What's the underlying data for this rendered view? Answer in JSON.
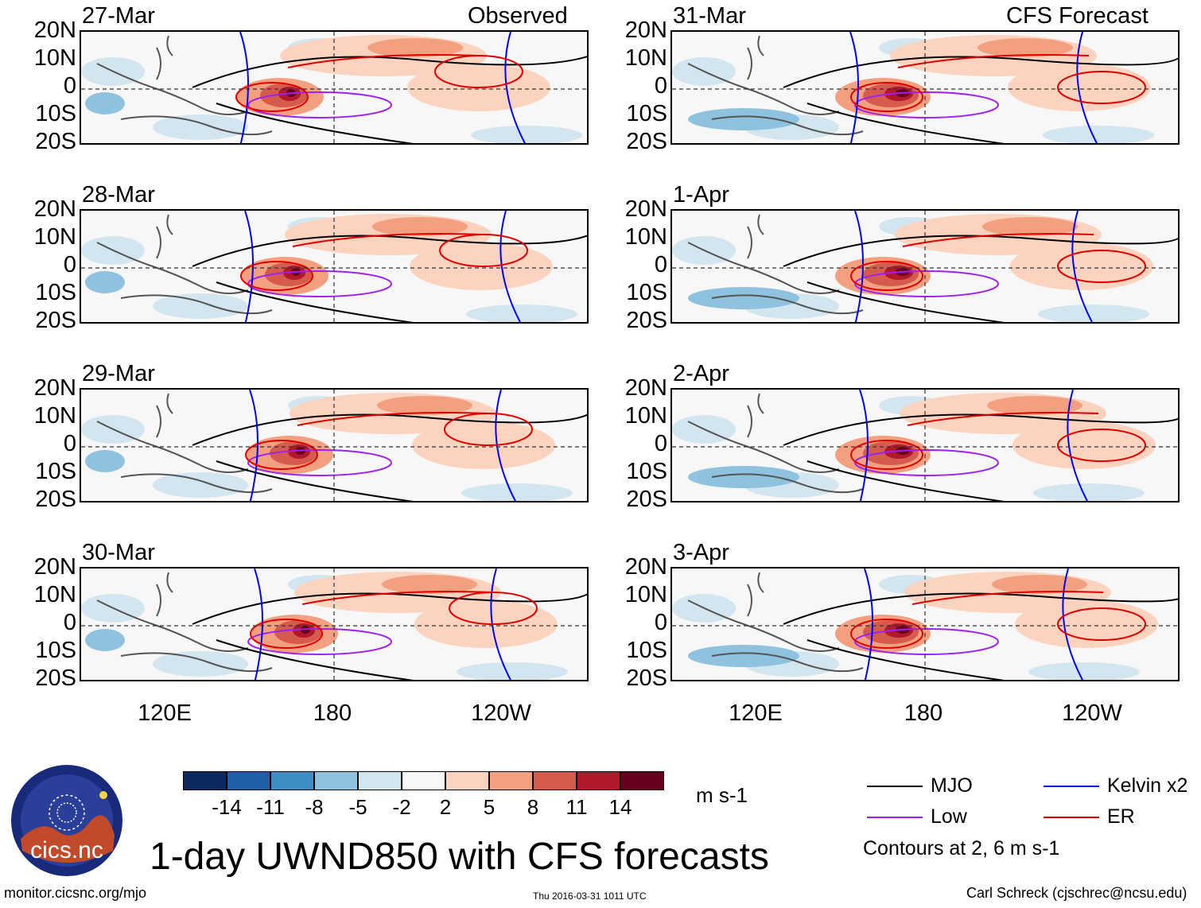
{
  "left_column": {
    "header": "Observed"
  },
  "right_column": {
    "header": "CFS Forecast"
  },
  "panels_left": [
    {
      "date": "27-Mar"
    },
    {
      "date": "28-Mar"
    },
    {
      "date": "29-Mar"
    },
    {
      "date": "30-Mar"
    }
  ],
  "panels_right": [
    {
      "date": "31-Mar"
    },
    {
      "date": "1-Apr"
    },
    {
      "date": "2-Apr"
    },
    {
      "date": "3-Apr"
    }
  ],
  "lat_labels": [
    "20N",
    "10N",
    "0",
    "10S",
    "20S"
  ],
  "lon_labels": [
    "120E",
    "180",
    "120W"
  ],
  "colorbar": {
    "colors": [
      "#0a2a5e",
      "#1f5fa5",
      "#3e8dc4",
      "#8fc2de",
      "#d3e6f0",
      "#f7f7f7",
      "#fbd3be",
      "#f2a07f",
      "#d45b4e",
      "#b2182b",
      "#67001f"
    ],
    "labels": [
      "-14",
      "-11",
      "-8",
      "-5",
      "-2",
      "2",
      "5",
      "8",
      "11",
      "14"
    ],
    "units": "m s-1"
  },
  "legend": {
    "items": [
      {
        "label": "MJO",
        "color": "#000000"
      },
      {
        "label": "Kelvin x2",
        "color": "#0000ff"
      },
      {
        "label": "Low",
        "color": "#a020f0"
      },
      {
        "label": "ER",
        "color": "#e00000"
      }
    ],
    "note": "Contours at 2, 6 m s-1"
  },
  "logo": {
    "text": "cics.nc"
  },
  "title": "1-day UWND850 with CFS forecasts",
  "footer": {
    "left": "monitor.cicsnc.org/mjo",
    "center": "Thu 2016-03-31 1011 UTC",
    "right": "Carl Schreck (cjschrec@ncsu.edu)"
  },
  "chart_data": {
    "type": "heatmap",
    "variable": "850-hPa zonal wind anomaly (1-day)",
    "units": "m s-1",
    "lat_range": [
      -20,
      20
    ],
    "lon_range": [
      90,
      270
    ],
    "lat_ticks": [
      20,
      10,
      0,
      -10,
      -20
    ],
    "lon_ticks": [
      120,
      180,
      240
    ],
    "color_levels": [
      -14,
      -11,
      -8,
      -5,
      -2,
      2,
      5,
      8,
      11,
      14
    ],
    "contour_levels": [
      2,
      6
    ],
    "panels": [
      "27-Mar",
      "28-Mar",
      "29-Mar",
      "30-Mar",
      "31-Mar",
      "1-Apr",
      "2-Apr",
      "3-Apr"
    ],
    "filters": [
      "MJO",
      "Kelvin x2",
      "Low",
      "ER"
    ]
  }
}
